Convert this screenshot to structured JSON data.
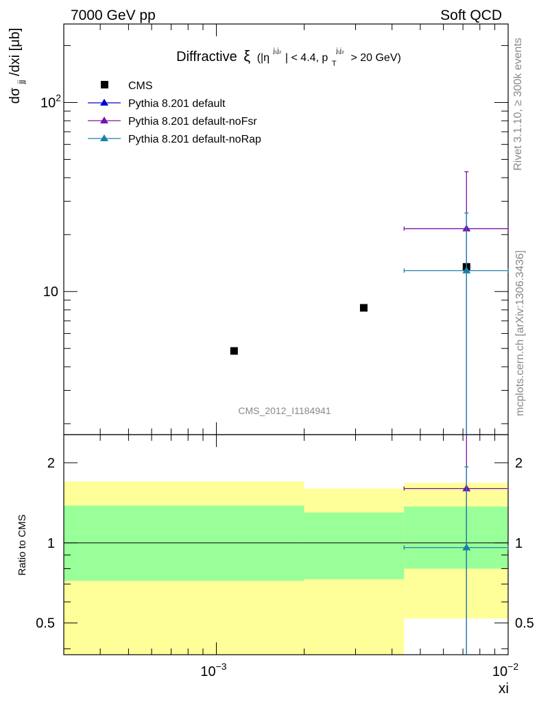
{
  "header": {
    "left": "7000 GeV pp",
    "right": "Soft QCD"
  },
  "side_text": {
    "rivet": "Rivet 3.1.10, ≥ 300k events",
    "mcplots": "mcplots.cern.ch [arXiv:1306.3436]"
  },
  "analysis_label": "CMS_2012_I1184941",
  "chart_data": [
    {
      "type": "scatter",
      "title": "Diffractive ξ (|η^{j1j2}| < 4.4, p_T^{j1j2} > 20 GeV)",
      "title_parts": {
        "main": "Diffractive",
        "xi": "ξ",
        "open": "(|η",
        "sup1": "j₁j₂",
        "mid": "| < 4.4, p",
        "sub": "T",
        "sup2": "j₁j₂",
        "close": "> 20 GeV)"
      },
      "ylabel": "dσjj/dxi [μb]",
      "ylabel_parts": {
        "main": "dσ",
        "sub": "jj",
        "rest": "/dxi [μb]"
      },
      "xscale": "log",
      "yscale": "log",
      "xlim": [
        0.0003,
        0.01
      ],
      "ylim": [
        1.75,
        260
      ],
      "yticklabels": [
        {
          "value": 10,
          "label": "10"
        },
        {
          "value": 100,
          "label": "10",
          "exp": "2"
        }
      ],
      "legend_position": "top-left",
      "series": [
        {
          "name": "CMS",
          "color": "#000000",
          "marker": "square",
          "points": [
            {
              "x": 0.00115,
              "y": 4.85
            },
            {
              "x": 0.0032,
              "y": 8.2
            },
            {
              "x": 0.0072,
              "y": 13.5
            }
          ]
        },
        {
          "name": "Pythia 8.201 default",
          "color": "#0000cc",
          "marker": "triangle",
          "points": []
        },
        {
          "name": "Pythia 8.201 default-noFsr",
          "color": "#7711aa",
          "marker": "triangle",
          "points": [
            {
              "x": 0.0072,
              "y": 21.5,
              "xerr": [
                0.0044,
                0.01
              ],
              "yerr": [
                1.75,
                43
              ]
            }
          ]
        },
        {
          "name": "Pythia 8.201 default-noRap",
          "color": "#1a80a8",
          "marker": "triangle",
          "points": [
            {
              "x": 0.0072,
              "y": 12.9,
              "xerr": [
                0.0044,
                0.01
              ],
              "yerr": [
                1.75,
                26
              ]
            }
          ]
        }
      ]
    },
    {
      "type": "scatter",
      "title": "",
      "ylabel": "Ratio to CMS",
      "xlabel": "xi",
      "xscale": "log",
      "yscale": "log",
      "xlim": [
        0.0003,
        0.01
      ],
      "ylim": [
        0.38,
        2.55
      ],
      "xticklabels": [
        {
          "value": 0.001,
          "label": "10",
          "exp": "−3"
        },
        {
          "value": 0.01,
          "label": "10",
          "exp": "−2"
        }
      ],
      "yticklabels": [
        {
          "value": 0.5,
          "label": "0.5"
        },
        {
          "value": 1,
          "label": "1"
        },
        {
          "value": 2,
          "label": "2"
        }
      ],
      "reference_line": 1,
      "bands": [
        {
          "x": [
            0.0003,
            0.002
          ],
          "yellow": [
            0.38,
            1.7
          ],
          "green": [
            0.72,
            1.38
          ]
        },
        {
          "x": [
            0.002,
            0.0044
          ],
          "yellow": [
            0.38,
            1.6
          ],
          "green": [
            0.73,
            1.3
          ]
        },
        {
          "x": [
            0.0044,
            0.01
          ],
          "yellow": [
            0.52,
            1.68
          ],
          "green": [
            0.8,
            1.37
          ]
        }
      ],
      "band_colors": {
        "yellow": "#ffff99",
        "green": "#99ff99"
      },
      "series": [
        {
          "name": "Pythia 8.201 default-noFsr",
          "color": "#7711aa",
          "points": [
            {
              "x": 0.0072,
              "y": 1.6,
              "xerr": [
                0.0044,
                0.01
              ],
              "yerr": [
                0.38,
                2.55
              ]
            }
          ]
        },
        {
          "name": "Pythia 8.201 default-noRap",
          "color": "#1a80a8",
          "points": [
            {
              "x": 0.0072,
              "y": 0.96,
              "xerr": [
                0.0044,
                0.01
              ],
              "yerr": [
                0.38,
                1.93
              ]
            }
          ]
        }
      ]
    }
  ]
}
